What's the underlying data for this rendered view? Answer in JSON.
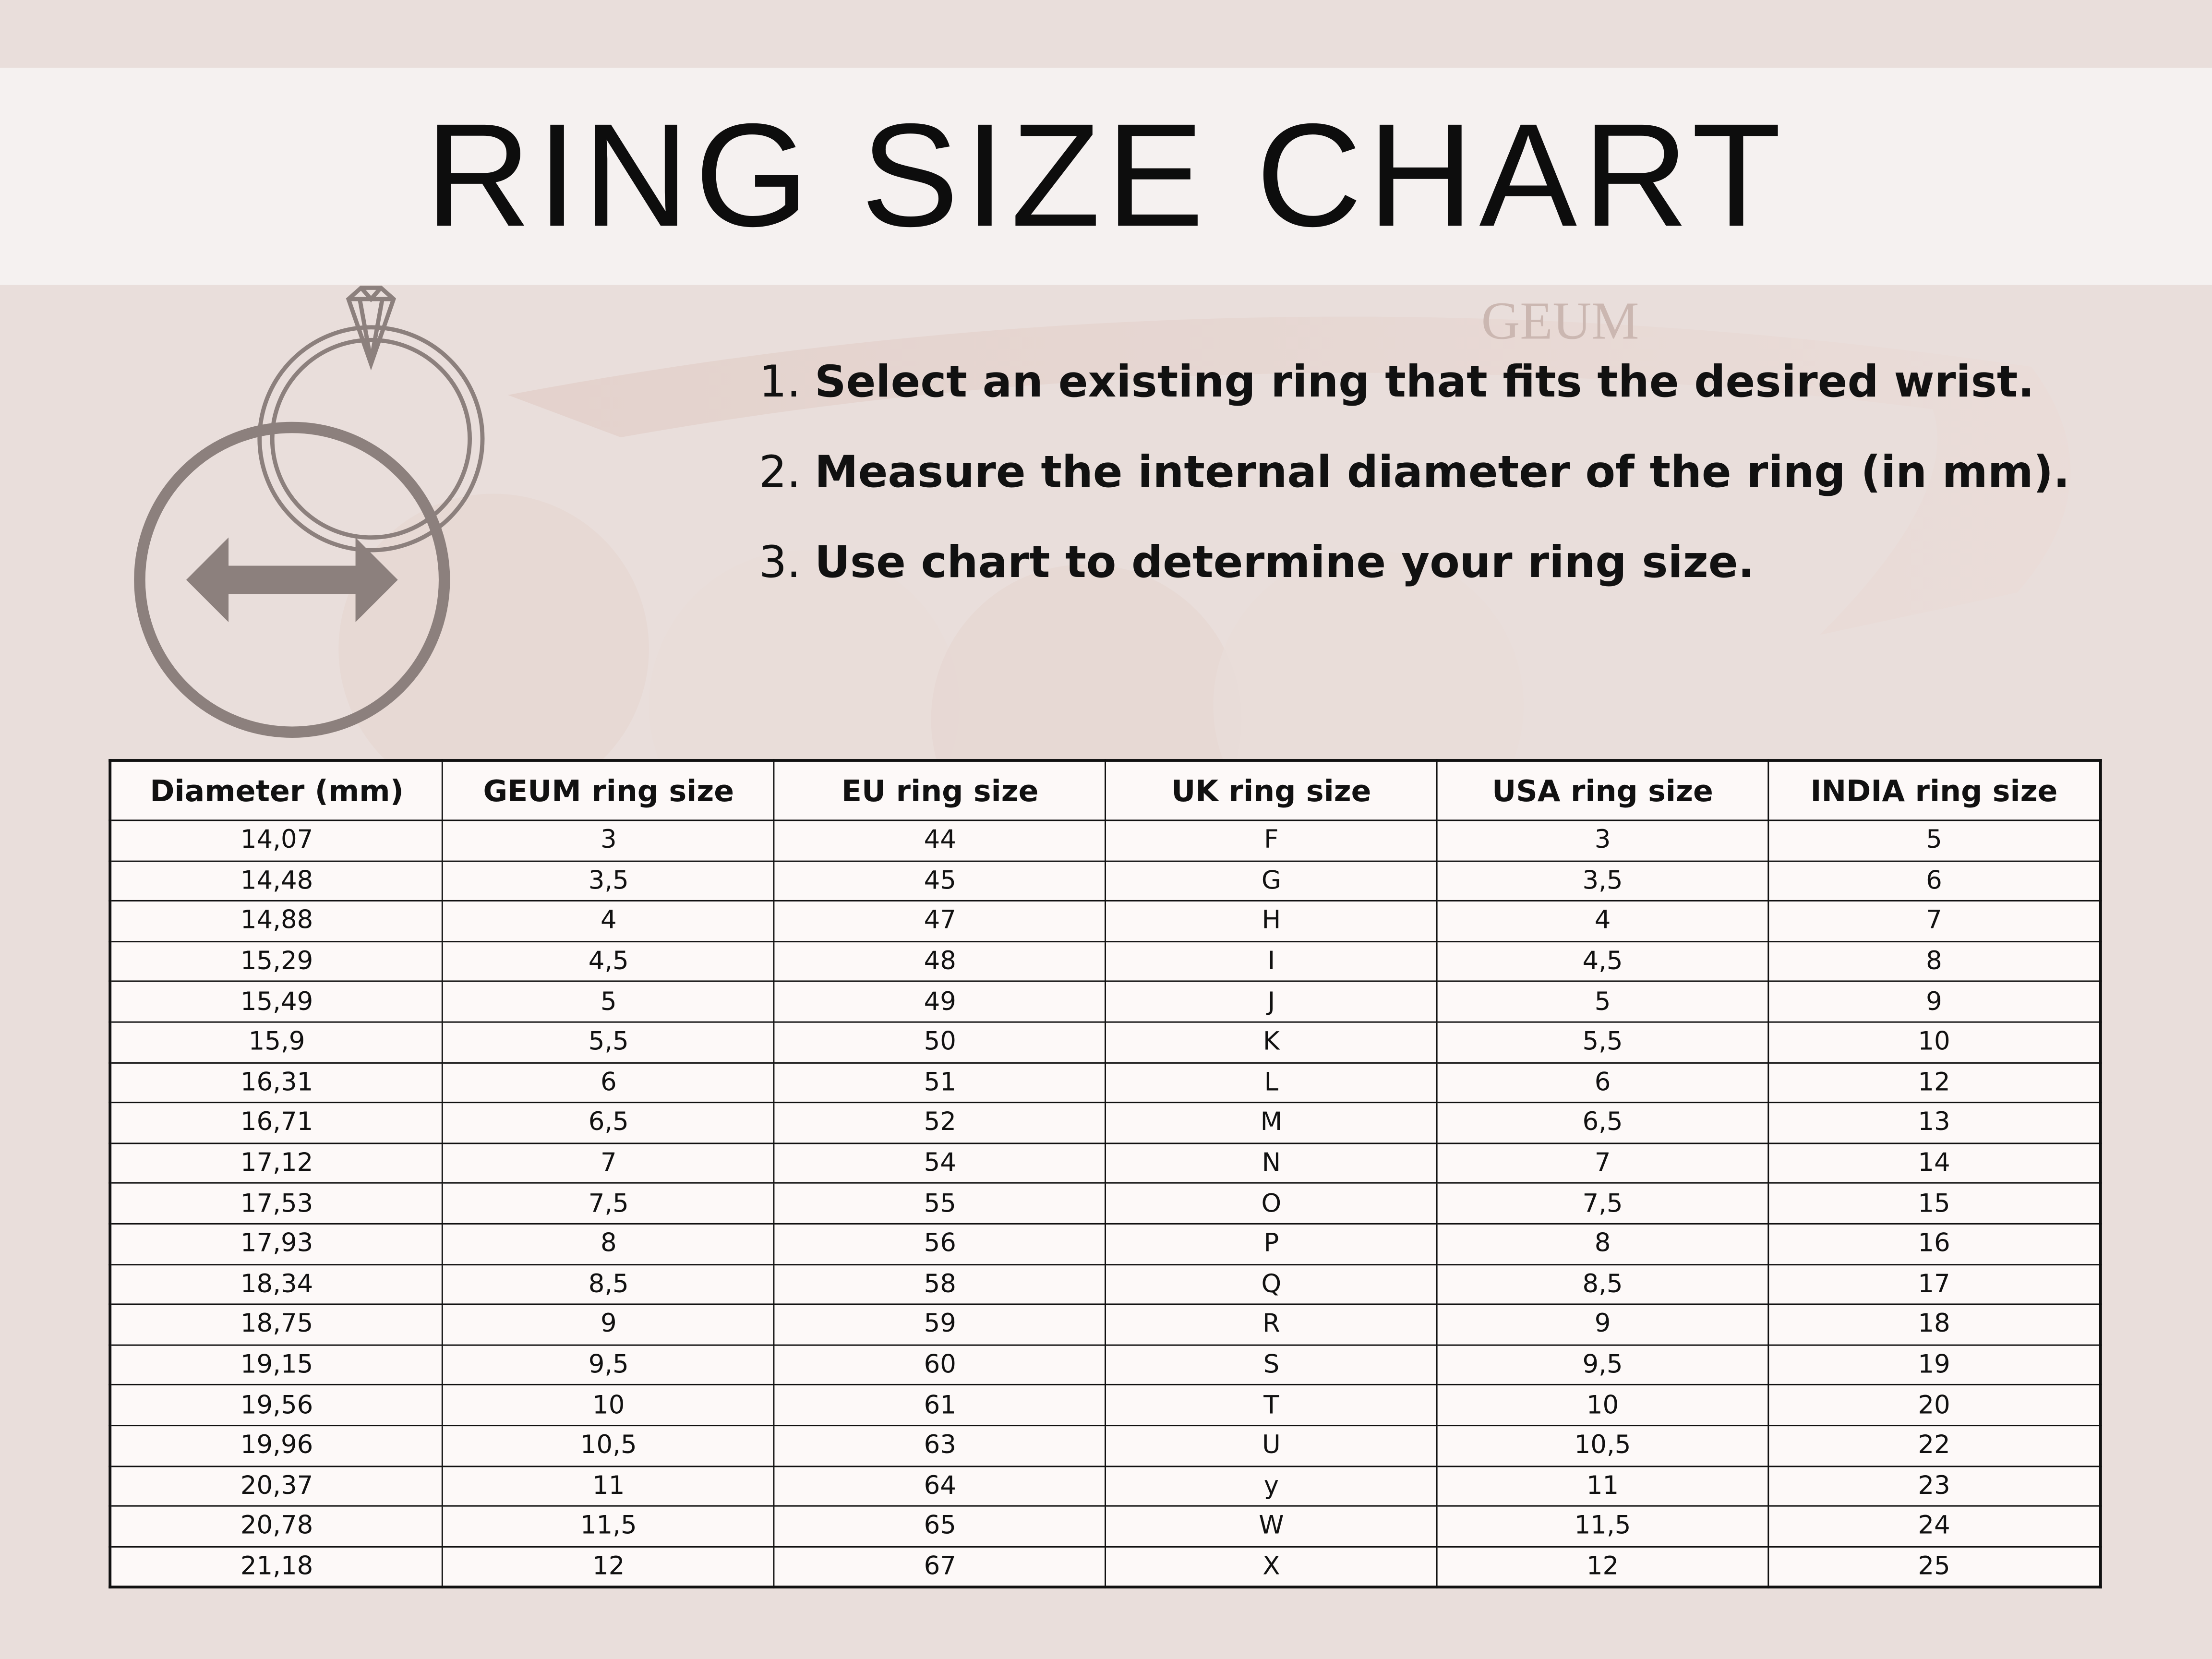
{
  "title": "RING SIZE CHART",
  "watermark": "GEUM",
  "instructions": [
    {
      "num": "1.",
      "text": "Select an existing ring that fits the desired wrist."
    },
    {
      "num": "2.",
      "text": "Measure the internal diameter of the ring (in mm)."
    },
    {
      "num": "3.",
      "text": "Use chart to determine your ring size."
    }
  ],
  "icons": [
    "ring-with-diamond-icon",
    "diameter-arrow-icon"
  ],
  "colors": {
    "background": "#e9dedb",
    "title_band": "#f5f1f0",
    "icon": "#8c807d",
    "table_bg": "#fdf9f8"
  },
  "table": {
    "headers": [
      "Diameter  (mm)",
      "GEUM ring size",
      "EU ring size",
      "UK ring size",
      "USA ring size",
      "INDIA ring size"
    ],
    "rows": [
      [
        "14,07",
        "3",
        "44",
        "F",
        "3",
        "5"
      ],
      [
        "14,48",
        "3,5",
        "45",
        "G",
        "3,5",
        "6"
      ],
      [
        "14,88",
        "4",
        "47",
        "H",
        "4",
        "7"
      ],
      [
        "15,29",
        "4,5",
        "48",
        "I",
        "4,5",
        "8"
      ],
      [
        "15,49",
        "5",
        "49",
        "J",
        "5",
        "9"
      ],
      [
        "15,9",
        "5,5",
        "50",
        "K",
        "5,5",
        "10"
      ],
      [
        "16,31",
        "6",
        "51",
        "L",
        "6",
        "12"
      ],
      [
        "16,71",
        "6,5",
        "52",
        "M",
        "6,5",
        "13"
      ],
      [
        "17,12",
        "7",
        "54",
        "N",
        "7",
        "14"
      ],
      [
        "17,53",
        "7,5",
        "55",
        "O",
        "7,5",
        "15"
      ],
      [
        "17,93",
        "8",
        "56",
        "P",
        "8",
        "16"
      ],
      [
        "18,34",
        "8,5",
        "58",
        "Q",
        "8,5",
        "17"
      ],
      [
        "18,75",
        "9",
        "59",
        "R",
        "9",
        "18"
      ],
      [
        "19,15",
        "9,5",
        "60",
        "S",
        "9,5",
        "19"
      ],
      [
        "19,56",
        "10",
        "61",
        "T",
        "10",
        "20"
      ],
      [
        "19,96",
        "10,5",
        "63",
        "U",
        "10,5",
        "22"
      ],
      [
        "20,37",
        "11",
        "64",
        "y",
        "11",
        "23"
      ],
      [
        "20,78",
        "11,5",
        "65",
        "W",
        "11,5",
        "24"
      ],
      [
        "21,18",
        "12",
        "67",
        "X",
        "12",
        "25"
      ]
    ]
  }
}
